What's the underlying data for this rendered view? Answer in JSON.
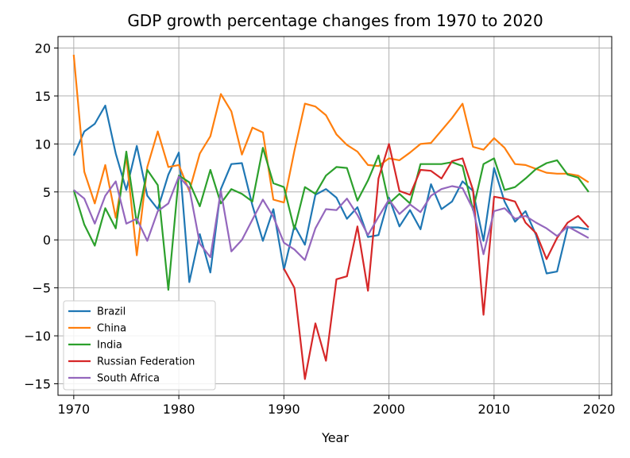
{
  "chart_data": {
    "type": "line",
    "title": "GDP growth percentage changes from 1970 to 2020",
    "xlabel": "Year",
    "ylabel": "",
    "xlim": [
      1968.5,
      2021.2
    ],
    "ylim": [
      -16.2,
      21.2
    ],
    "xticks": [
      1970,
      1980,
      1990,
      2000,
      2010,
      2020
    ],
    "yticks": [
      -15,
      -10,
      -5,
      0,
      5,
      10,
      15,
      20
    ],
    "grid": true,
    "legend_position": "lower-left",
    "series": [
      {
        "name": "Brazil",
        "color": "#1f77b4",
        "x": [
          1970,
          1971,
          1972,
          1973,
          1974,
          1975,
          1976,
          1977,
          1978,
          1979,
          1980,
          1981,
          1982,
          1983,
          1984,
          1985,
          1986,
          1987,
          1988,
          1989,
          1990,
          1991,
          1992,
          1993,
          1994,
          1995,
          1996,
          1997,
          1998,
          1999,
          2000,
          2001,
          2002,
          2003,
          2004,
          2005,
          2006,
          2007,
          2008,
          2009,
          2010,
          2011,
          2012,
          2013,
          2014,
          2015,
          2016,
          2017,
          2018,
          2019
        ],
        "y": [
          8.8,
          11.3,
          12.1,
          14.0,
          9.0,
          5.2,
          9.8,
          4.6,
          3.2,
          6.8,
          9.1,
          -4.4,
          0.6,
          -3.4,
          5.3,
          7.9,
          8.0,
          3.6,
          -0.1,
          3.2,
          -3.1,
          1.5,
          -0.5,
          4.7,
          5.3,
          4.4,
          2.2,
          3.4,
          0.3,
          0.5,
          4.4,
          1.4,
          3.1,
          1.1,
          5.8,
          3.2,
          4.0,
          6.1,
          5.1,
          -0.1,
          7.5,
          4.0,
          1.9,
          3.0,
          0.5,
          -3.5,
          -3.3,
          1.3,
          1.3,
          1.1
        ]
      },
      {
        "name": "China",
        "color": "#ff7f0e",
        "x": [
          1970,
          1971,
          1972,
          1973,
          1974,
          1975,
          1976,
          1977,
          1978,
          1979,
          1980,
          1981,
          1982,
          1983,
          1984,
          1985,
          1986,
          1987,
          1988,
          1989,
          1990,
          1991,
          1992,
          1993,
          1994,
          1995,
          1996,
          1997,
          1998,
          1999,
          2000,
          2001,
          2002,
          2003,
          2004,
          2005,
          2006,
          2007,
          2008,
          2009,
          2010,
          2011,
          2012,
          2013,
          2014,
          2015,
          2016,
          2017,
          2018,
          2019
        ],
        "y": [
          19.3,
          7.1,
          3.8,
          7.8,
          2.3,
          8.7,
          -1.6,
          7.6,
          11.3,
          7.6,
          7.8,
          5.1,
          9.0,
          10.8,
          15.2,
          13.4,
          8.9,
          11.7,
          11.2,
          4.2,
          3.9,
          9.3,
          14.2,
          13.9,
          13.0,
          11.0,
          9.9,
          9.2,
          7.8,
          7.7,
          8.5,
          8.3,
          9.1,
          10.0,
          10.1,
          11.4,
          12.7,
          14.2,
          9.7,
          9.4,
          10.6,
          9.6,
          7.9,
          7.8,
          7.4,
          7.0,
          6.9,
          6.9,
          6.7,
          6.0
        ]
      },
      {
        "name": "India",
        "color": "#2ca02c",
        "x": [
          1970,
          1971,
          1972,
          1973,
          1974,
          1975,
          1976,
          1977,
          1978,
          1979,
          1980,
          1981,
          1982,
          1983,
          1984,
          1985,
          1986,
          1987,
          1988,
          1989,
          1990,
          1991,
          1992,
          1993,
          1994,
          1995,
          1996,
          1997,
          1998,
          1999,
          2000,
          2001,
          2002,
          2003,
          2004,
          2005,
          2006,
          2007,
          2008,
          2009,
          2010,
          2011,
          2012,
          2013,
          2014,
          2015,
          2016,
          2017,
          2018,
          2019
        ],
        "y": [
          5.2,
          1.6,
          -0.6,
          3.3,
          1.2,
          9.2,
          1.7,
          7.3,
          5.7,
          -5.2,
          6.7,
          6.0,
          3.5,
          7.3,
          3.8,
          5.3,
          4.8,
          4.0,
          9.6,
          5.9,
          5.5,
          1.1,
          5.5,
          4.8,
          6.7,
          7.6,
          7.5,
          4.1,
          6.2,
          8.8,
          3.8,
          4.8,
          3.8,
          7.9,
          7.9,
          7.9,
          8.1,
          7.7,
          3.1,
          7.9,
          8.5,
          5.2,
          5.5,
          6.4,
          7.4,
          8.0,
          8.3,
          6.8,
          6.5,
          5.0
        ]
      },
      {
        "name": "Russian Federation",
        "color": "#d62728",
        "x": [
          1990,
          1991,
          1992,
          1993,
          1994,
          1995,
          1996,
          1997,
          1998,
          1999,
          2000,
          2001,
          2002,
          2003,
          2004,
          2005,
          2006,
          2007,
          2008,
          2009,
          2010,
          2011,
          2012,
          2013,
          2014,
          2015,
          2016,
          2017,
          2018,
          2019
        ],
        "y": [
          -3.0,
          -5.0,
          -14.5,
          -8.7,
          -12.6,
          -4.1,
          -3.8,
          1.4,
          -5.3,
          6.4,
          10.0,
          5.1,
          4.7,
          7.3,
          7.2,
          6.4,
          8.2,
          8.5,
          5.2,
          -7.8,
          4.5,
          4.3,
          4.0,
          1.8,
          0.7,
          -2.0,
          0.2,
          1.8,
          2.5,
          1.3
        ]
      },
      {
        "name": "South Africa",
        "color": "#9467bd",
        "x": [
          1970,
          1971,
          1972,
          1973,
          1974,
          1975,
          1976,
          1977,
          1978,
          1979,
          1980,
          1981,
          1982,
          1983,
          1984,
          1985,
          1986,
          1987,
          1988,
          1989,
          1990,
          1991,
          1992,
          1993,
          1994,
          1995,
          1996,
          1997,
          1998,
          1999,
          2000,
          2001,
          2002,
          2003,
          2004,
          2005,
          2006,
          2007,
          2008,
          2009,
          2010,
          2011,
          2012,
          2013,
          2014,
          2015,
          2016,
          2017,
          2018,
          2019
        ],
        "y": [
          5.2,
          4.3,
          1.7,
          4.6,
          6.1,
          1.7,
          2.2,
          -0.1,
          3.0,
          3.8,
          6.6,
          5.4,
          -0.4,
          -1.8,
          5.1,
          -1.2,
          0.0,
          2.1,
          4.2,
          2.4,
          -0.3,
          -1.0,
          -2.1,
          1.2,
          3.2,
          3.1,
          4.3,
          2.6,
          0.5,
          2.4,
          4.2,
          2.7,
          3.7,
          2.9,
          4.6,
          5.3,
          5.6,
          5.4,
          3.2,
          -1.5,
          3.0,
          3.3,
          2.2,
          2.5,
          1.8,
          1.2,
          0.4,
          1.4,
          0.8,
          0.2
        ]
      }
    ]
  }
}
